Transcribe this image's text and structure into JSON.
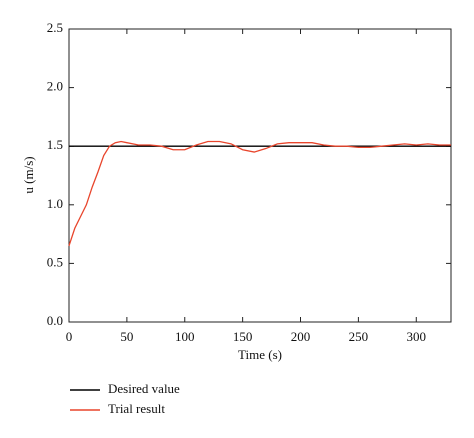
{
  "chart_data": {
    "type": "line",
    "x_label": "Time (s)",
    "y_label": "u (m/s)",
    "x": [
      0,
      5,
      10,
      15,
      20,
      25,
      30,
      35,
      40,
      45,
      50,
      60,
      70,
      80,
      90,
      100,
      110,
      120,
      130,
      140,
      150,
      160,
      170,
      180,
      190,
      200,
      210,
      220,
      230,
      240,
      250,
      260,
      270,
      280,
      290,
      300,
      310,
      320,
      330
    ],
    "series": [
      {
        "name": "Desired value",
        "color": "#000000",
        "values": [
          1.5,
          1.5,
          1.5,
          1.5,
          1.5,
          1.5,
          1.5,
          1.5,
          1.5,
          1.5,
          1.5,
          1.5,
          1.5,
          1.5,
          1.5,
          1.5,
          1.5,
          1.5,
          1.5,
          1.5,
          1.5,
          1.5,
          1.5,
          1.5,
          1.5,
          1.5,
          1.5,
          1.5,
          1.5,
          1.5,
          1.5,
          1.5,
          1.5,
          1.5,
          1.5,
          1.5,
          1.5,
          1.5,
          1.5
        ]
      },
      {
        "name": "Trial result",
        "color": "#e8452c",
        "values": [
          0.65,
          0.8,
          0.9,
          1.0,
          1.15,
          1.28,
          1.42,
          1.5,
          1.53,
          1.54,
          1.53,
          1.51,
          1.51,
          1.5,
          1.47,
          1.47,
          1.51,
          1.54,
          1.54,
          1.52,
          1.47,
          1.45,
          1.48,
          1.52,
          1.53,
          1.53,
          1.53,
          1.51,
          1.5,
          1.5,
          1.49,
          1.49,
          1.5,
          1.51,
          1.52,
          1.51,
          1.52,
          1.51,
          1.51
        ]
      }
    ],
    "xlim": [
      0,
      330
    ],
    "xticks": [
      0,
      50,
      100,
      150,
      200,
      250,
      300
    ],
    "ylim": [
      0,
      2.5
    ],
    "yticks": [
      {
        "value": 0,
        "label": "0.0"
      },
      {
        "value": 0.5,
        "label": "0.5"
      },
      {
        "value": 1,
        "label": "1.0"
      },
      {
        "value": 1.5,
        "label": "1.5"
      },
      {
        "value": 2,
        "label": "2.0"
      },
      {
        "value": 2.5,
        "label": "2.5"
      }
    ]
  }
}
